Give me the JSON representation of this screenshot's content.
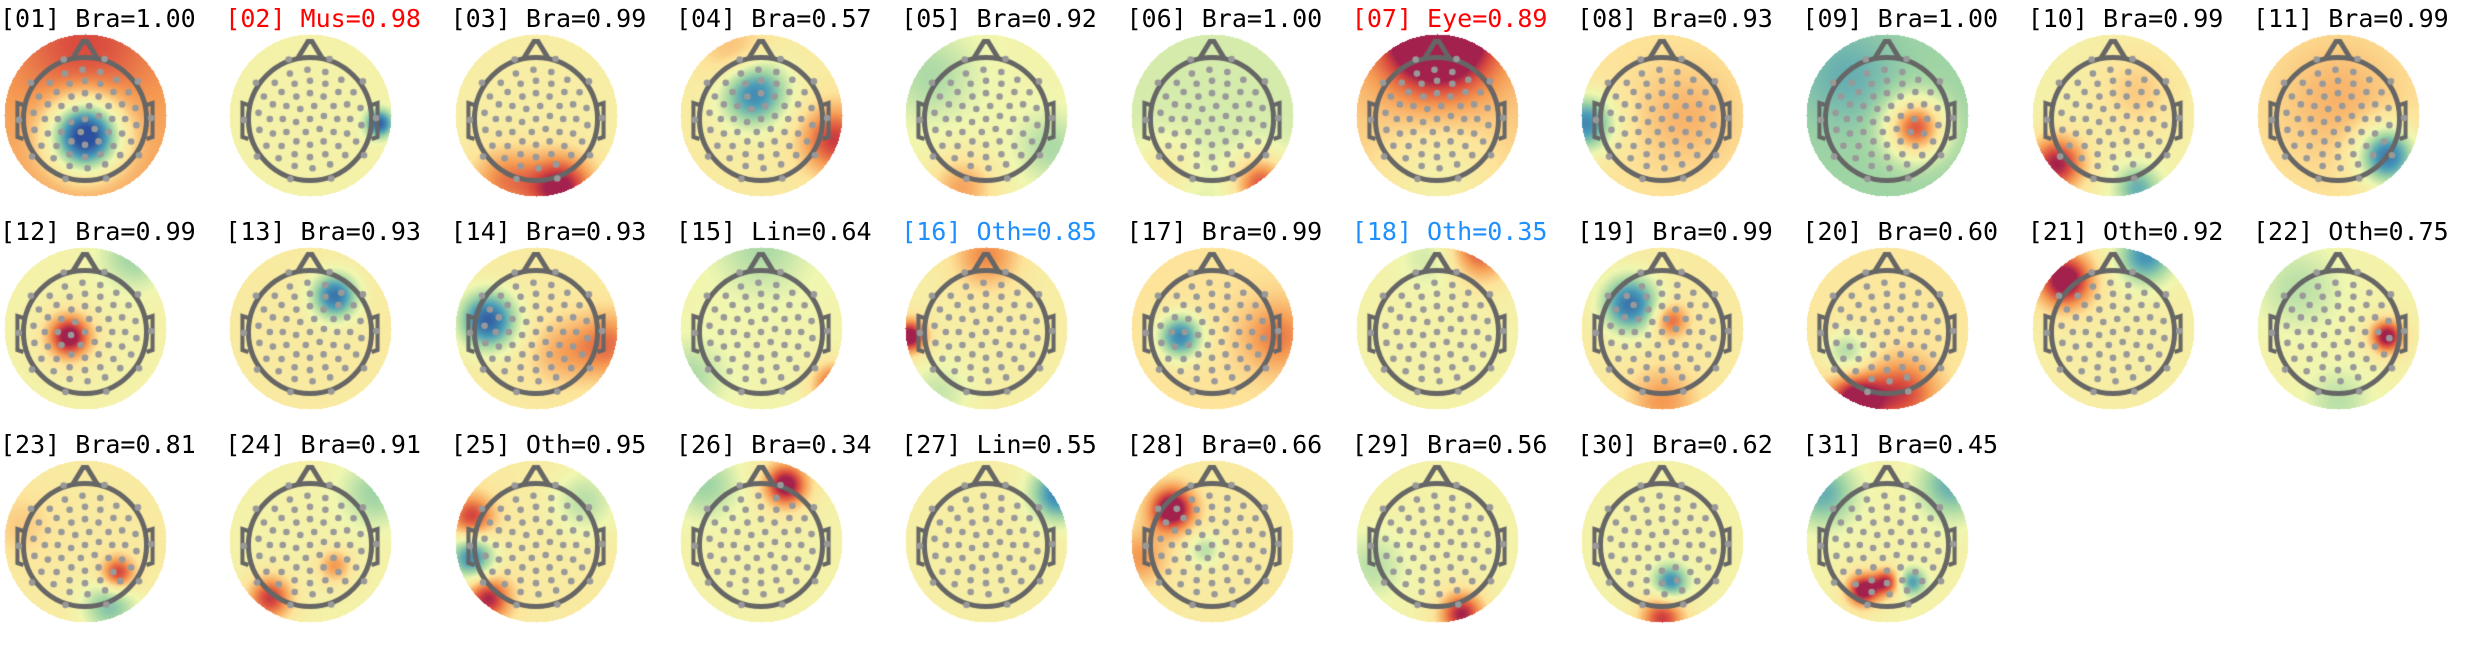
{
  "colors": {
    "default": "#000000",
    "muscle_eye": "#ff0000",
    "other_highlight": "#1e8fff"
  },
  "colormap": [
    "#2c4f9e",
    "#4a9cb8",
    "#9fd4a4",
    "#f0f7b0",
    "#fde49a",
    "#f59a52",
    "#d94a3e",
    "#a3214d"
  ],
  "components": [
    {
      "title": "[01] Bra=1.00",
      "color": "#000000"
    },
    {
      "title": "[02] Mus=0.98",
      "color": "#ff0000"
    },
    {
      "title": "[03] Bra=0.99",
      "color": "#000000"
    },
    {
      "title": "[04] Bra=0.57",
      "color": "#000000"
    },
    {
      "title": "[05] Bra=0.92",
      "color": "#000000"
    },
    {
      "title": "[06] Bra=1.00",
      "color": "#000000"
    },
    {
      "title": "[07] Eye=0.89",
      "color": "#ff0000"
    },
    {
      "title": "[08] Bra=0.93",
      "color": "#000000"
    },
    {
      "title": "[09] Bra=1.00",
      "color": "#000000"
    },
    {
      "title": "[10] Bra=0.99",
      "color": "#000000"
    },
    {
      "title": "[11] Bra=0.99",
      "color": "#000000"
    },
    {
      "title": "[12] Bra=0.99",
      "color": "#000000"
    },
    {
      "title": "[13] Bra=0.93",
      "color": "#000000"
    },
    {
      "title": "[14] Bra=0.93",
      "color": "#000000"
    },
    {
      "title": "[15] Lin=0.64",
      "color": "#000000"
    },
    {
      "title": "[16] Oth=0.85",
      "color": "#1e8fff"
    },
    {
      "title": "[17] Bra=0.99",
      "color": "#000000"
    },
    {
      "title": "[18] Oth=0.35",
      "color": "#1e8fff"
    },
    {
      "title": "[19] Bra=0.99",
      "color": "#000000"
    },
    {
      "title": "[20] Bra=0.60",
      "color": "#000000"
    },
    {
      "title": "[21] Oth=0.92",
      "color": "#000000"
    },
    {
      "title": "[22] Oth=0.75",
      "color": "#000000"
    },
    {
      "title": "[23] Bra=0.81",
      "color": "#000000"
    },
    {
      "title": "[24] Bra=0.91",
      "color": "#000000"
    },
    {
      "title": "[25] Oth=0.95",
      "color": "#000000"
    },
    {
      "title": "[26] Bra=0.34",
      "color": "#000000"
    },
    {
      "title": "[27] Lin=0.55",
      "color": "#000000"
    },
    {
      "title": "[28] Bra=0.66",
      "color": "#000000"
    },
    {
      "title": "[29] Bra=0.56",
      "color": "#000000"
    },
    {
      "title": "[30] Bra=0.62",
      "color": "#000000"
    },
    {
      "title": "[31] Bra=0.45",
      "color": "#000000"
    }
  ]
}
